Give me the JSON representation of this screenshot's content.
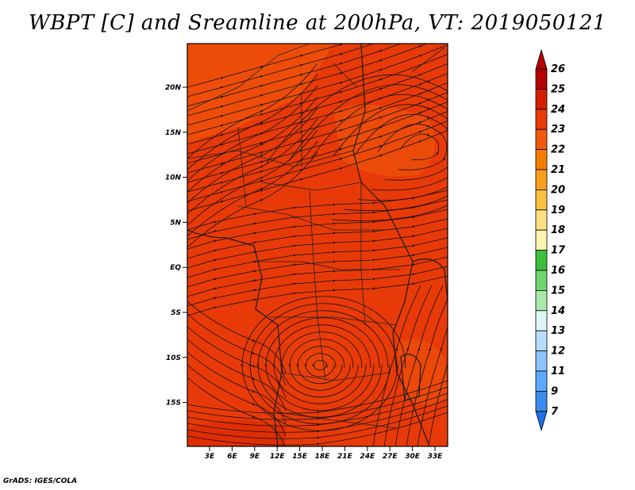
{
  "title": "WBPT [C] and Sreamline at 200hPa, VT: 2019050121",
  "credit": "GrADS: IGES/COLA",
  "map": {
    "lat_ticks": [
      "20N",
      "15N",
      "10N",
      "5N",
      "EQ",
      "5S",
      "10S",
      "15S"
    ],
    "lon_ticks": [
      "3E",
      "6E",
      "9E",
      "12E",
      "15E",
      "18E",
      "21E",
      "24E",
      "27E",
      "30E",
      "33E"
    ],
    "fill_color": "#e83a08",
    "streamline_color": "#111111"
  },
  "colorbar": {
    "labels": [
      "26",
      "25",
      "24",
      "23",
      "22",
      "21",
      "20",
      "19",
      "18",
      "17",
      "16",
      "15",
      "14",
      "13",
      "12",
      "11",
      "9",
      "7"
    ],
    "colors": [
      "#b40000",
      "#d41e00",
      "#e83a08",
      "#f05a0a",
      "#f57e00",
      "#f99e1a",
      "#fbc040",
      "#fde080",
      "#fff4b0",
      "#3cbf3c",
      "#6fd66f",
      "#a8e8a8",
      "#e0f6f6",
      "#b6dcff",
      "#8cc4ff",
      "#5ea8ff",
      "#3c8cf0",
      "#1e6ee6"
    ]
  }
}
